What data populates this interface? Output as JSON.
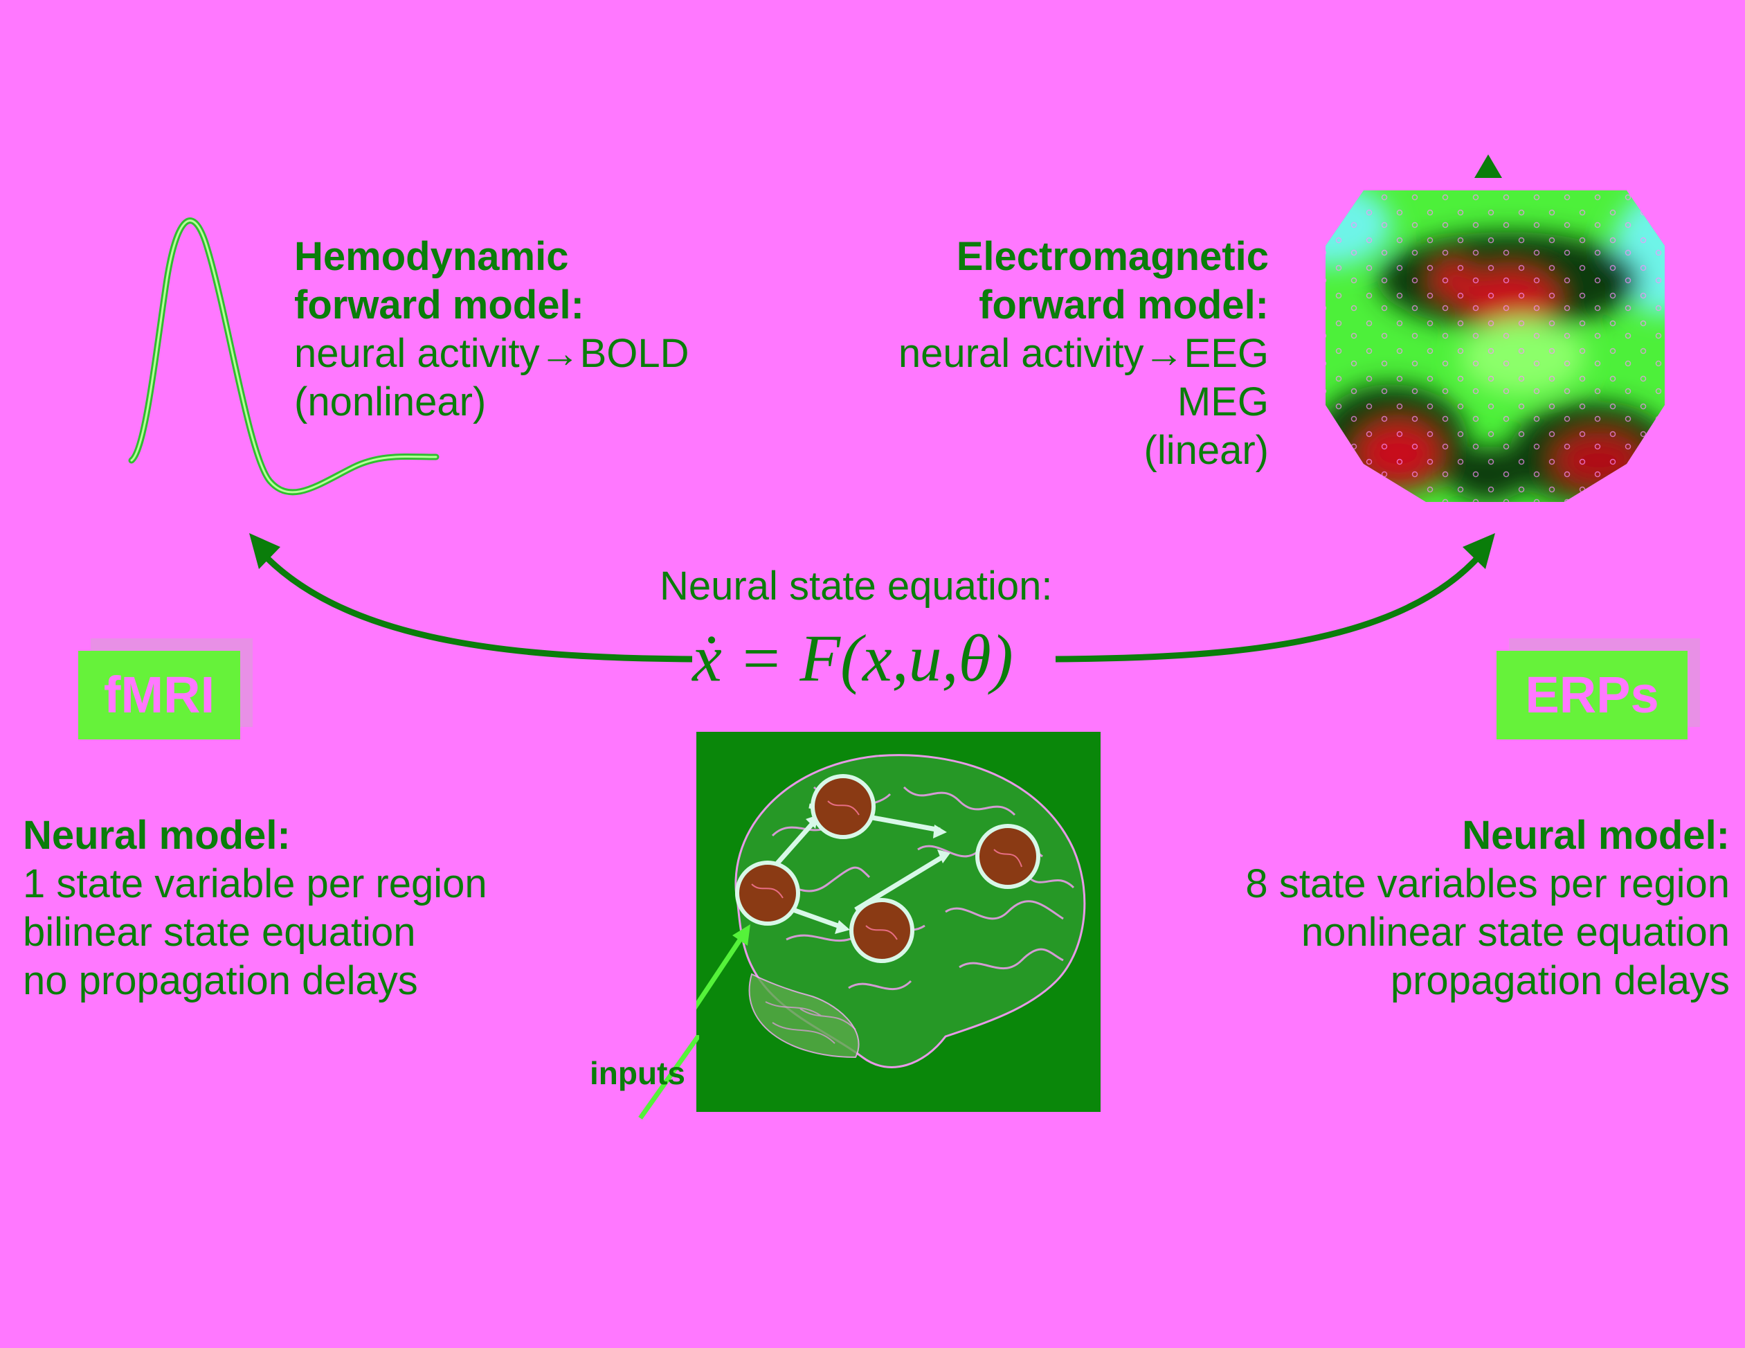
{
  "fmri": {
    "badge": "fMRI",
    "forward_title": [
      "Hemodynamic",
      "forward model:"
    ],
    "forward_lines": [
      "neural activity→BOLD",
      "(nonlinear)"
    ],
    "neural_title": "Neural model:",
    "neural_lines": [
      "1 state variable per region",
      "bilinear state equation",
      "no propagation delays"
    ]
  },
  "erp": {
    "badge": "ERPs",
    "forward_title": [
      "Electromagnetic",
      "forward model:"
    ],
    "forward_lines": [
      "neural activity→EEG",
      "MEG",
      "(linear)"
    ],
    "neural_title": "Neural model:",
    "neural_lines": [
      "8 state variables per region",
      "nonlinear state equation",
      "propagation delays"
    ]
  },
  "center": {
    "equation_label": "Neural state equation:",
    "equation": "ẋ = F(x,u,θ)",
    "inputs_label": "inputs"
  },
  "colors": {
    "background": "#ff78ff",
    "text_green": "#0a7d0a",
    "badge_green": "#66f23a",
    "brain_bg": "#0a870a",
    "node_fill": "#8a3a14"
  }
}
